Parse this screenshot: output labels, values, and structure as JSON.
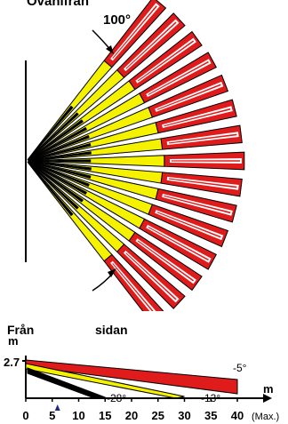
{
  "top_view": {
    "title": "Ovanifrån",
    "angle_label": "100°",
    "fan_angle_deg": 100,
    "beam_count": 15,
    "colors": {
      "near": "#000000",
      "mid": "#f5f200",
      "far": "#e01b1b",
      "outline": "#000000"
    }
  },
  "side_view": {
    "label_from": "Från",
    "label_side": "sidan",
    "y_unit": "m",
    "y_value": "2.7",
    "x_unit": "m",
    "x_ticks": [
      "0",
      "5",
      "10",
      "15",
      "20",
      "25",
      "30",
      "35",
      "40"
    ],
    "max_label": "(Max.)",
    "marker_at": 6,
    "beams": [
      {
        "angle": "-5°",
        "end_m": 40,
        "color": "#e01b1b"
      },
      {
        "angle": "-13°",
        "end_m": 30,
        "color": "#f5f200"
      },
      {
        "angle": "-28°",
        "end_m": 15,
        "color": "#000000"
      }
    ]
  }
}
